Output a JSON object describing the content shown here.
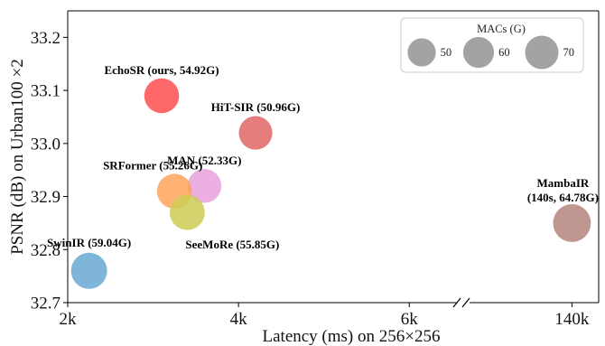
{
  "chart_data": {
    "type": "scatter",
    "xlabel": "Latency (ms) on 256×256",
    "ylabel": "PSNR (dB) on Urban100 ×2",
    "ylim": [
      32.7,
      33.25
    ],
    "y_ticks": [
      "32.7",
      "32.8",
      "32.9",
      "33.0",
      "33.1",
      "33.2"
    ],
    "x_ticks": [
      "2k",
      "4k",
      "6k",
      "140k"
    ],
    "x_axis_break": "between 6k and 140k",
    "grid": false,
    "legend": {
      "title": "MACs (G)",
      "placement": "top-right",
      "entries": [
        {
          "label": "50",
          "macs": 50
        },
        {
          "label": "60",
          "macs": 60
        },
        {
          "label": "70",
          "macs": 70
        }
      ]
    },
    "points": [
      {
        "model": "EchoSR",
        "label_lines": [
          "EchoSR (ours, 54.92G)"
        ],
        "latency_k": 3.1,
        "psnr": 33.09,
        "macs": 54.92,
        "color": "#ff4d4d"
      },
      {
        "model": "HiT-SIR",
        "label_lines": [
          "HiT-SIR (50.96G)"
        ],
        "latency_k": 4.2,
        "psnr": 33.02,
        "macs": 50.96,
        "color": "#e06666"
      },
      {
        "model": "MAN",
        "label_lines": [
          "MAN (52.33G)"
        ],
        "latency_k": 3.6,
        "psnr": 32.92,
        "macs": 52.33,
        "color": "#e9a1dd"
      },
      {
        "model": "SRFormer",
        "label_lines": [
          "SRFormer (55.26G)"
        ],
        "latency_k": 3.25,
        "psnr": 32.91,
        "macs": 55.26,
        "color": "#ffa55a"
      },
      {
        "model": "SeeMoRe",
        "label_lines": [
          "SeeMoRe (55.85G)"
        ],
        "latency_k": 3.4,
        "psnr": 32.87,
        "macs": 55.85,
        "color": "#cccc55"
      },
      {
        "model": "SwinIR",
        "label_lines": [
          "SwinIR (59.04G)"
        ],
        "latency_k": 2.25,
        "psnr": 32.76,
        "macs": 59.04,
        "color": "#6aa8d4"
      },
      {
        "model": "MambaIR",
        "label_lines": [
          "MambaIR",
          "(140s, 64.78G)"
        ],
        "latency_k": 140,
        "psnr": 32.85,
        "macs": 64.78,
        "color": "#b5857c"
      }
    ]
  }
}
